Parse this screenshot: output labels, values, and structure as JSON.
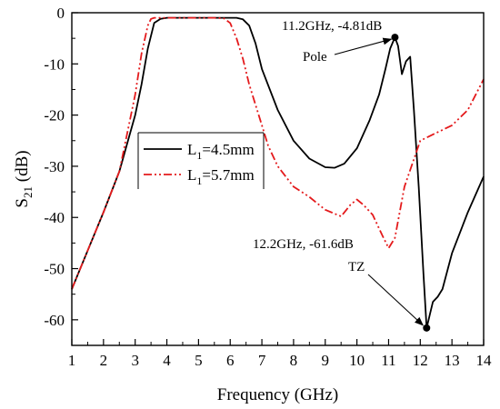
{
  "chart_data": {
    "type": "line",
    "title": "",
    "xlabel": "Frequency (GHz)",
    "ylabel": {
      "main": "S",
      "sub": "21",
      "unit": " (dB)"
    },
    "xlim": [
      1,
      14
    ],
    "ylim": [
      -65,
      0
    ],
    "xticks": [
      1,
      2,
      3,
      4,
      5,
      6,
      7,
      8,
      9,
      10,
      11,
      12,
      13,
      14
    ],
    "yticks": [
      0,
      -10,
      -20,
      -30,
      -40,
      -50,
      -60
    ],
    "grid": false,
    "legend_position": "center-left",
    "series": [
      {
        "name": "L1=4.5mm",
        "label_main": "L",
        "label_sub": "1",
        "label_rest": "=4.5mm",
        "color": "#000000",
        "style": "solid",
        "x": [
          1,
          1.5,
          2,
          2.5,
          3,
          3.2,
          3.4,
          3.6,
          3.8,
          4,
          4.5,
          5,
          5.5,
          6,
          6.2,
          6.4,
          6.6,
          6.8,
          7,
          7.5,
          8,
          8.5,
          9,
          9.3,
          9.6,
          10,
          10.4,
          10.7,
          10.9,
          11.05,
          11.2,
          11.3,
          11.42,
          11.55,
          11.68,
          11.8,
          11.95,
          12.1,
          12.2,
          12.3,
          12.4,
          12.55,
          12.7,
          13,
          13.5,
          14
        ],
        "y": [
          -54,
          -46.5,
          -39,
          -31,
          -20,
          -14,
          -7,
          -2,
          -1.2,
          -1,
          -1,
          -1,
          -1,
          -1,
          -1,
          -1.3,
          -2.5,
          -6,
          -11,
          -19,
          -25,
          -28.5,
          -30.2,
          -30.3,
          -29.5,
          -26.5,
          -21,
          -16,
          -11,
          -7,
          -4.81,
          -6.5,
          -12,
          -9.5,
          -8.6,
          -19,
          -34,
          -51,
          -61.6,
          -59,
          -56.5,
          -55.5,
          -54,
          -47,
          -39,
          -32
        ]
      },
      {
        "name": "L1=5.7mm",
        "label_main": "L",
        "label_sub": "1",
        "label_rest": "=5.7mm",
        "color": "#e41a1c",
        "style": "dash-dot-dot",
        "x": [
          1,
          1.5,
          2,
          2.5,
          3,
          3.2,
          3.4,
          3.5,
          3.6,
          3.8,
          4,
          4.5,
          5,
          5.5,
          5.8,
          6,
          6.2,
          6.4,
          6.6,
          6.8,
          7,
          7.2,
          7.5,
          8,
          8.5,
          9,
          9.5,
          9.8,
          10,
          10.2,
          10.5,
          10.8,
          11,
          11.2,
          11.5,
          12,
          12.5,
          13,
          13.5,
          14
        ],
        "y": [
          -54,
          -46.5,
          -39,
          -31,
          -16,
          -8,
          -2.5,
          -1.2,
          -1,
          -1,
          -1,
          -1,
          -1,
          -1,
          -1.1,
          -2,
          -5,
          -9,
          -14,
          -18,
          -22,
          -26,
          -30,
          -34,
          -36,
          -38.5,
          -39.8,
          -37.5,
          -36.5,
          -37.5,
          -39.5,
          -43.5,
          -46,
          -44,
          -34,
          -25,
          -23.5,
          -22,
          -19,
          -13
        ]
      }
    ],
    "annotations": [
      {
        "text": "11.2GHz, -4.81dB",
        "x": 11.2,
        "y": -4.81
      },
      {
        "text": "Pole",
        "x": 11.2,
        "y": -4.81
      },
      {
        "text": "12.2GHz, -61.6dB",
        "x": 12.2,
        "y": -61.6
      },
      {
        "text": "TZ",
        "x": 12.2,
        "y": -61.6
      }
    ]
  }
}
